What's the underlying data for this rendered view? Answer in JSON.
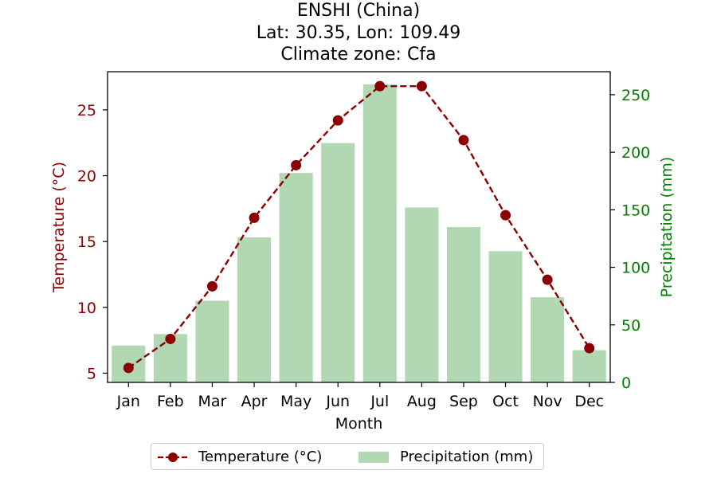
{
  "chart_data": {
    "type": "bar",
    "title": [
      "ENSHI (China)",
      "Lat: 30.35, Lon: 109.49",
      "Climate zone: Cfa"
    ],
    "xlabel": "Month",
    "categories": [
      "Jan",
      "Feb",
      "Mar",
      "Apr",
      "May",
      "Jun",
      "Jul",
      "Aug",
      "Sep",
      "Oct",
      "Nov",
      "Dec"
    ],
    "series": [
      {
        "name": "Temperature (°C)",
        "kind": "line",
        "axis": "left",
        "style": "dashed, circle markers",
        "color": "#8b0000",
        "values": [
          5.4,
          7.6,
          11.6,
          16.8,
          20.8,
          24.2,
          26.8,
          26.8,
          22.7,
          17.0,
          12.1,
          6.9
        ]
      },
      {
        "name": "Precipitation (mm)",
        "kind": "bar",
        "axis": "right",
        "color": "#b1d8b3",
        "values": [
          32,
          42,
          71,
          126,
          182,
          208,
          259,
          152,
          135,
          114,
          74,
          28
        ]
      }
    ],
    "y_left": {
      "label": "Temperature (°C)",
      "ylim": [
        4.3,
        27.9
      ],
      "ticks": [
        5,
        10,
        15,
        20,
        25
      ],
      "color": "#8b0000"
    },
    "y_right": {
      "label": "Precipitation (mm)",
      "ylim": [
        0,
        270
      ],
      "ticks": [
        0,
        50,
        100,
        150,
        200,
        250
      ],
      "color": "#008000"
    },
    "grid": false,
    "legend": {
      "placement": "bottom-center",
      "entries": [
        "Temperature (°C)",
        "Precipitation (mm)"
      ]
    }
  }
}
